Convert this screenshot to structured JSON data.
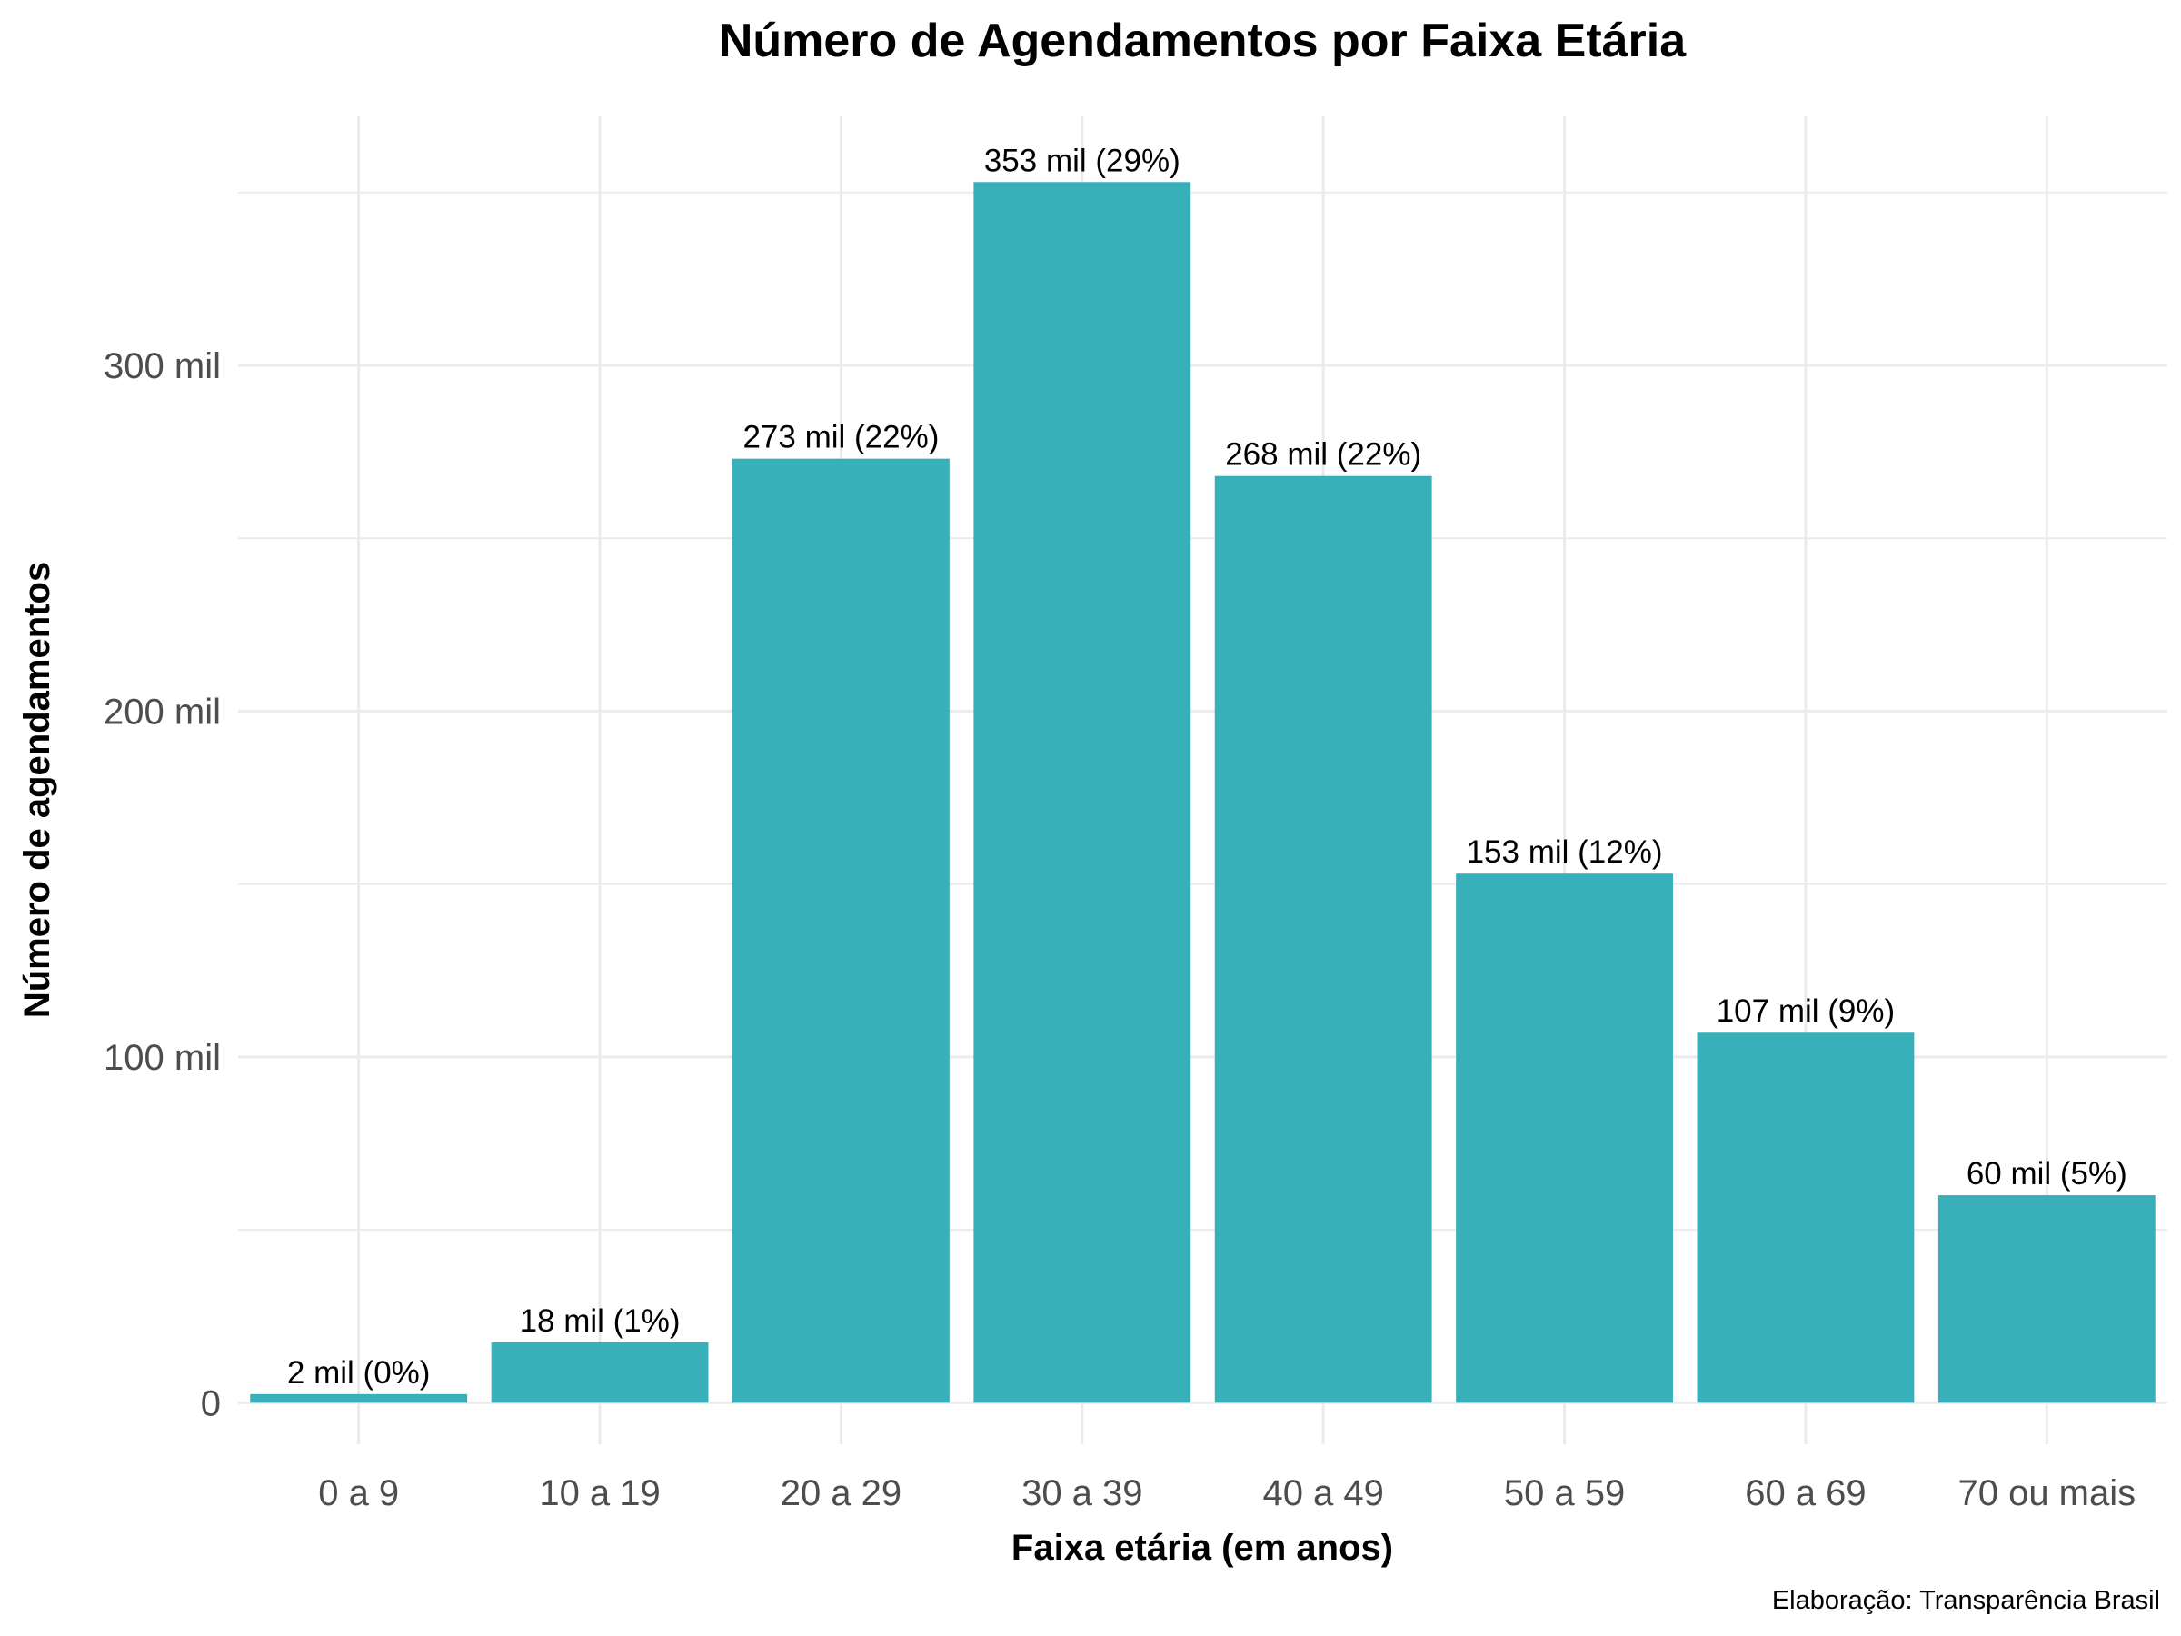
{
  "chart_data": {
    "type": "bar",
    "title": "Número de Agendamentos por Faixa Etária",
    "xlabel": "Faixa etária (em anos)",
    "ylabel": "Número de agendamentos",
    "caption": "Elaboração: Transparência Brasil",
    "categories": [
      "0 a 9",
      "10 a 19",
      "20 a 29",
      "30 a 39",
      "40 a 49",
      "50 a 59",
      "60 a 69",
      "70 ou mais"
    ],
    "values": [
      2.5,
      17.5,
      273,
      353,
      268,
      153,
      107,
      60
    ],
    "value_unit": "mil",
    "data_labels": [
      "2 mil (0%)",
      "18 mil (1%)",
      "273 mil (22%)",
      "353 mil (29%)",
      "268 mil (22%)",
      "153 mil (12%)",
      "107 mil (9%)",
      "60 mil (5%)"
    ],
    "ylim": [
      -12,
      372
    ],
    "yticks": [
      0,
      100,
      200,
      300
    ],
    "ytick_labels": [
      "0",
      "100 mil",
      "200 mil",
      "300 mil"
    ],
    "yminor": [
      50,
      150,
      250,
      350
    ],
    "grid": true,
    "legend": "none",
    "bar_color": "#38b0b9"
  }
}
